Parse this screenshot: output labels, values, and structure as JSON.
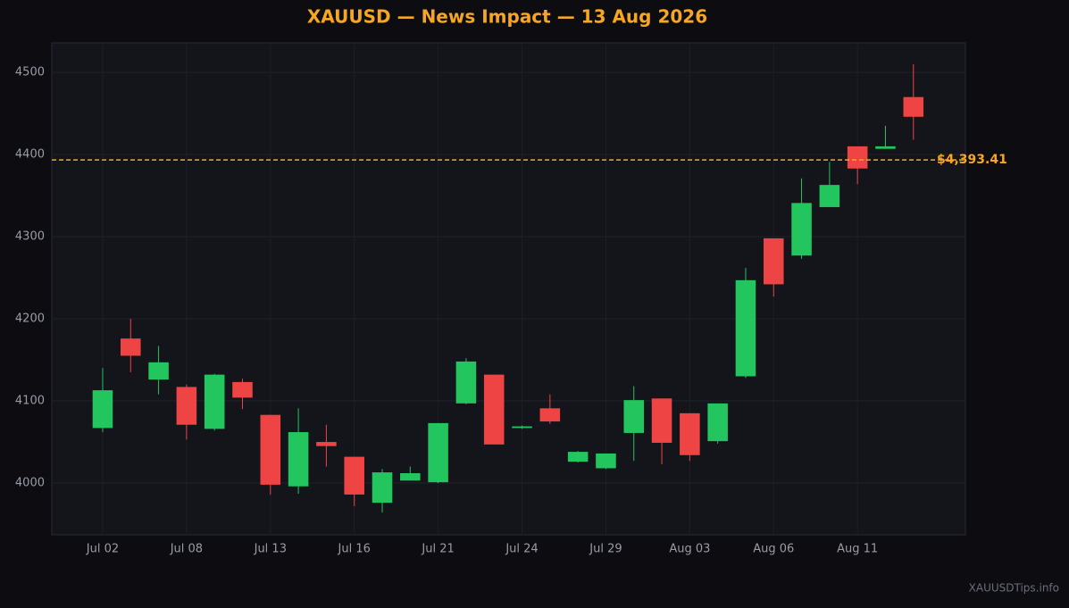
{
  "chart_data": {
    "type": "candlestick",
    "title": "XAUUSD — News Impact — 13 Aug 2026",
    "categories": [
      "Jul 02",
      null,
      null,
      "Jul 08",
      null,
      null,
      "Jul 13",
      null,
      null,
      "Jul 16",
      null,
      null,
      "Jul 21",
      null,
      null,
      "Jul 24",
      null,
      null,
      "Jul 29",
      null,
      null,
      "Aug 03",
      null,
      null,
      "Aug 06",
      null,
      null,
      "Aug 11",
      null,
      null
    ],
    "open": [
      4067,
      4176,
      4126,
      4117,
      4066,
      4123,
      4083,
      3996,
      4050,
      4032,
      3976,
      4003,
      4001,
      4097,
      4132,
      4067,
      4091,
      4026,
      4018,
      4061,
      4103,
      4085,
      4051,
      4130,
      4298,
      4277,
      4336,
      4410,
      4407,
      4470
    ],
    "high": [
      4140,
      4200,
      4167,
      4120,
      4133,
      4127,
      4083,
      4091,
      4071,
      4032,
      4017,
      4020,
      4073,
      4152,
      4132,
      4070,
      4108,
      4039,
      4036,
      4118,
      4103,
      4085,
      4097,
      4262,
      4298,
      4371,
      4391,
      4410,
      4435,
      4510
    ],
    "low": [
      4062,
      4135,
      4108,
      4053,
      4064,
      4090,
      3986,
      3987,
      4020,
      3972,
      3964,
      4003,
      4000,
      4096,
      4047,
      4066,
      4072,
      4025,
      4017,
      4027,
      4023,
      4027,
      4048,
      4128,
      4227,
      4273,
      4336,
      4364,
      4407,
      4418
    ],
    "close": [
      4113,
      4155,
      4147,
      4071,
      4132,
      4104,
      3998,
      4062,
      4045,
      3986,
      4013,
      4012,
      4073,
      4148,
      4047,
      4069,
      4075,
      4038,
      4036,
      4101,
      4049,
      4034,
      4097,
      4247,
      4242,
      4341,
      4363,
      4383,
      4410,
      4446
    ],
    "up_color": "#22c55e",
    "down_color": "#ef4444",
    "ylim": [
      3937,
      4536
    ],
    "yticks": [
      4000,
      4100,
      4200,
      4300,
      4400,
      4500
    ],
    "grid": true,
    "reference_line": {
      "value": 4393.41,
      "label": "$4,393.41",
      "color": "#f5a623"
    },
    "footer": "XAUUSDTips.info"
  }
}
